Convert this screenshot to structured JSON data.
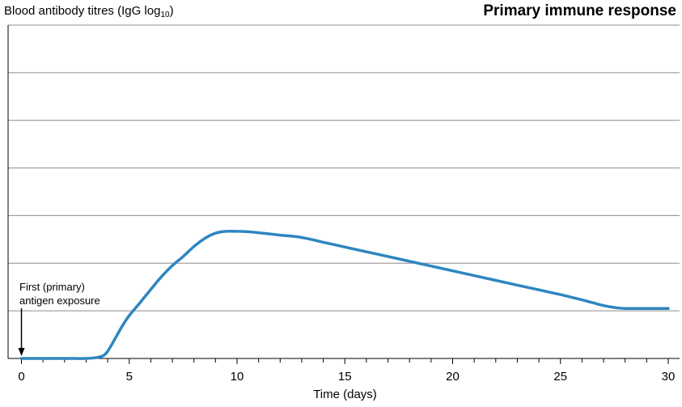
{
  "chart_data": {
    "type": "line",
    "title": "Primary immune response",
    "ylabel": {
      "prefix": "Blood antibody titres (IgG log",
      "subscript": "10",
      "suffix": ")"
    },
    "xlabel": "Time (days)",
    "xlim": [
      0,
      30
    ],
    "x_ticks": [
      0,
      5,
      10,
      15,
      20,
      25,
      30
    ],
    "ylim": [
      0,
      7
    ],
    "y_gridlines": [
      1,
      2,
      3,
      4,
      5,
      6,
      7
    ],
    "grid": true,
    "line_color": "#2e86c1",
    "series": [
      {
        "x": [
          0,
          1,
          2,
          3,
          3.5,
          3.8,
          4,
          4.3,
          4.7,
          5,
          5.5,
          6,
          6.5,
          7,
          7.5,
          8,
          8.5,
          9,
          9.5,
          10,
          10.5,
          11,
          12,
          13,
          14,
          15,
          16,
          17,
          18,
          19,
          20,
          21,
          22,
          23,
          24,
          25,
          26,
          26.5,
          27,
          27.5,
          28,
          29,
          30
        ],
        "y": [
          0,
          0,
          0,
          0,
          0.02,
          0.06,
          0.15,
          0.38,
          0.7,
          0.9,
          1.17,
          1.45,
          1.72,
          1.95,
          2.14,
          2.35,
          2.52,
          2.63,
          2.67,
          2.67,
          2.66,
          2.64,
          2.59,
          2.54,
          2.44,
          2.34,
          2.24,
          2.14,
          2.04,
          1.94,
          1.84,
          1.74,
          1.64,
          1.54,
          1.44,
          1.34,
          1.23,
          1.17,
          1.11,
          1.07,
          1.05,
          1.05,
          1.05
        ]
      }
    ],
    "annotations": [
      {
        "text_line1": "First (primary)",
        "text_line2": "antigen exposure",
        "x": 0,
        "arrow": "down"
      }
    ]
  }
}
